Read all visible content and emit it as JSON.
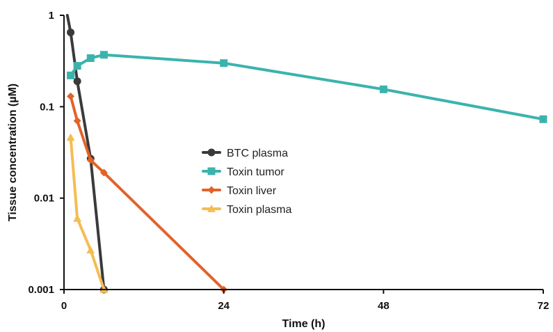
{
  "chart_data": {
    "type": "line",
    "xlabel": "Time (h)",
    "ylabel": "Tissue concentration (µM)",
    "xlim": [
      0,
      72
    ],
    "ylim": [
      0.001,
      1
    ],
    "y_scale": "log",
    "x_ticks": [
      {
        "value": 0,
        "label": "0"
      },
      {
        "value": 24,
        "label": "24"
      },
      {
        "value": 48,
        "label": "48"
      },
      {
        "value": 72,
        "label": "72"
      }
    ],
    "y_ticks": [
      {
        "value": 0.001,
        "label": "0.001"
      },
      {
        "value": 0.01,
        "label": "0.01"
      },
      {
        "value": 0.1,
        "label": "0.1"
      },
      {
        "value": 1,
        "label": "1"
      }
    ],
    "grid": false,
    "legend_position": "center",
    "series": [
      {
        "name": "BTC plasma",
        "color": "#3a3a3a",
        "marker": "circle",
        "x": [
          0.5,
          1,
          2,
          4,
          6
        ],
        "y": [
          1.0,
          0.65,
          0.19,
          0.027,
          0.001
        ]
      },
      {
        "name": "Toxin tumor",
        "color": "#3bb3ad",
        "marker": "square",
        "x": [
          1,
          2,
          4,
          6,
          24,
          48,
          72
        ],
        "y": [
          0.22,
          0.28,
          0.34,
          0.37,
          0.3,
          0.155,
          0.073
        ]
      },
      {
        "name": "Toxin liver",
        "color": "#e2622a",
        "marker": "diamond",
        "x": [
          1,
          2,
          4,
          6,
          24
        ],
        "y": [
          0.13,
          0.07,
          0.026,
          0.019,
          0.001
        ]
      },
      {
        "name": "Toxin plasma",
        "color": "#f4bd52",
        "marker": "triangle",
        "x": [
          1,
          2,
          4,
          6
        ],
        "y": [
          0.046,
          0.006,
          0.0027,
          0.001
        ]
      }
    ]
  }
}
